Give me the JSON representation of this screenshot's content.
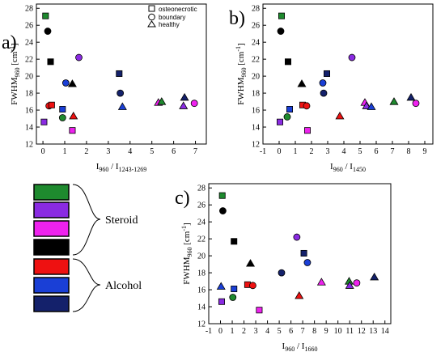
{
  "chart_data": [
    {
      "type": "scatter",
      "panel": "a)",
      "xlabel_main": "I",
      "xlabel_sub1": "960",
      "xlabel_mid": " / I",
      "xlabel_sub2": "1243-1269",
      "ylabel_main": "FWHM",
      "ylabel_sub": "960",
      "ylabel_unit": " [cm",
      "ylabel_sup": "-1",
      "ylabel_end": "]",
      "xlim": [
        -0.3,
        7.5
      ],
      "ylim": [
        12,
        28.5
      ],
      "xticks": [
        0,
        1,
        2,
        3,
        4,
        5,
        6,
        7
      ],
      "xtick_labels": [
        "0",
        "1",
        "2",
        "3",
        "4",
        "5",
        "6",
        "7"
      ],
      "yticks": [
        12,
        14,
        16,
        18,
        20,
        22,
        24,
        26,
        28
      ],
      "ytick_labels": [
        "12",
        "14",
        "16",
        "18",
        "20",
        "22",
        "24",
        "26",
        "28"
      ],
      "points": [
        {
          "x": 0.12,
          "y": 27.1,
          "shape": "square",
          "color": "#1e8a2e"
        },
        {
          "x": 0.05,
          "y": 14.6,
          "shape": "square",
          "color": "#8a2be2"
        },
        {
          "x": 0.28,
          "y": 16.5,
          "shape": "circle",
          "color": "#ee1111"
        },
        {
          "x": 0.22,
          "y": 25.3,
          "shape": "circle",
          "color": "#000000"
        },
        {
          "x": 0.35,
          "y": 21.7,
          "shape": "square",
          "color": "#000000"
        },
        {
          "x": 0.4,
          "y": 16.6,
          "shape": "square",
          "color": "#ee1111"
        },
        {
          "x": 0.9,
          "y": 16.1,
          "shape": "square",
          "color": "#1a3fd6"
        },
        {
          "x": 0.9,
          "y": 15.1,
          "shape": "circle",
          "color": "#1e8a2e"
        },
        {
          "x": 1.05,
          "y": 19.2,
          "shape": "circle",
          "color": "#1a3fd6"
        },
        {
          "x": 1.35,
          "y": 13.6,
          "shape": "square",
          "color": "#ee22ee"
        },
        {
          "x": 1.35,
          "y": 19.1,
          "shape": "triangle",
          "color": "#000000"
        },
        {
          "x": 1.4,
          "y": 15.3,
          "shape": "triangle",
          "color": "#ee1111"
        },
        {
          "x": 1.65,
          "y": 22.2,
          "shape": "circle",
          "color": "#8a2be2"
        },
        {
          "x": 3.5,
          "y": 20.3,
          "shape": "square",
          "color": "#14216b"
        },
        {
          "x": 3.55,
          "y": 18.0,
          "shape": "circle",
          "color": "#14216b"
        },
        {
          "x": 3.65,
          "y": 16.4,
          "shape": "triangle",
          "color": "#1a3fd6"
        },
        {
          "x": 5.3,
          "y": 16.9,
          "shape": "triangle",
          "color": "#ee22ee"
        },
        {
          "x": 5.45,
          "y": 17.0,
          "shape": "triangle",
          "color": "#1e8a2e"
        },
        {
          "x": 6.45,
          "y": 16.5,
          "shape": "triangle",
          "color": "#8a2be2"
        },
        {
          "x": 6.5,
          "y": 17.5,
          "shape": "triangle",
          "color": "#14216b"
        },
        {
          "x": 6.95,
          "y": 16.8,
          "shape": "circle",
          "color": "#ee22ee"
        }
      ]
    },
    {
      "type": "scatter",
      "panel": "b)",
      "xlabel_main": "I",
      "xlabel_sub1": "960",
      "xlabel_mid": " / I",
      "xlabel_sub2": "1450",
      "ylabel_main": "FWHM",
      "ylabel_sub": "960",
      "ylabel_unit": " [cm",
      "ylabel_sup": "-1",
      "ylabel_end": "]",
      "xlim": [
        -1,
        9.5
      ],
      "ylim": [
        12,
        28.5
      ],
      "xticks": [
        -1,
        0,
        1,
        2,
        3,
        4,
        5,
        6,
        7,
        8,
        9
      ],
      "xtick_labels": [
        "-1",
        "0",
        "1",
        "2",
        "3",
        "4",
        "5",
        "6",
        "7",
        "8",
        "9"
      ],
      "yticks": [
        12,
        14,
        16,
        18,
        20,
        22,
        24,
        26,
        28
      ],
      "ytick_labels": [
        "12",
        "14",
        "16",
        "18",
        "20",
        "22",
        "24",
        "26",
        "28"
      ],
      "points": [
        {
          "x": 0.15,
          "y": 27.1,
          "shape": "square",
          "color": "#1e8a2e"
        },
        {
          "x": 0.1,
          "y": 25.3,
          "shape": "circle",
          "color": "#000000"
        },
        {
          "x": 0.05,
          "y": 14.6,
          "shape": "square",
          "color": "#8a2be2"
        },
        {
          "x": 0.55,
          "y": 21.7,
          "shape": "square",
          "color": "#000000"
        },
        {
          "x": 0.5,
          "y": 15.2,
          "shape": "circle",
          "color": "#1e8a2e"
        },
        {
          "x": 0.65,
          "y": 16.1,
          "shape": "square",
          "color": "#1a3fd6"
        },
        {
          "x": 1.4,
          "y": 19.1,
          "shape": "triangle",
          "color": "#000000"
        },
        {
          "x": 1.45,
          "y": 16.6,
          "shape": "square",
          "color": "#ee1111"
        },
        {
          "x": 1.7,
          "y": 16.5,
          "shape": "circle",
          "color": "#ee1111"
        },
        {
          "x": 1.75,
          "y": 13.6,
          "shape": "square",
          "color": "#ee22ee"
        },
        {
          "x": 2.7,
          "y": 19.2,
          "shape": "circle",
          "color": "#1a3fd6"
        },
        {
          "x": 2.75,
          "y": 18.0,
          "shape": "circle",
          "color": "#14216b"
        },
        {
          "x": 2.95,
          "y": 20.3,
          "shape": "square",
          "color": "#14216b"
        },
        {
          "x": 3.75,
          "y": 15.3,
          "shape": "triangle",
          "color": "#ee1111"
        },
        {
          "x": 4.5,
          "y": 22.2,
          "shape": "circle",
          "color": "#8a2be2"
        },
        {
          "x": 5.3,
          "y": 16.9,
          "shape": "triangle",
          "color": "#ee22ee"
        },
        {
          "x": 5.4,
          "y": 16.5,
          "shape": "triangle",
          "color": "#8a2be2"
        },
        {
          "x": 5.7,
          "y": 16.4,
          "shape": "triangle",
          "color": "#1a3fd6"
        },
        {
          "x": 7.1,
          "y": 17.0,
          "shape": "triangle",
          "color": "#1e8a2e"
        },
        {
          "x": 8.15,
          "y": 17.5,
          "shape": "triangle",
          "color": "#14216b"
        },
        {
          "x": 8.45,
          "y": 16.8,
          "shape": "circle",
          "color": "#ee22ee"
        }
      ]
    },
    {
      "type": "scatter",
      "panel": "c)",
      "xlabel_main": "I",
      "xlabel_sub1": "960",
      "xlabel_mid": " / I",
      "xlabel_sub2": "1660",
      "ylabel_main": "FWHM",
      "ylabel_sub": "960",
      "ylabel_unit": " [cm",
      "ylabel_sup": "-1",
      "ylabel_end": "]",
      "xlim": [
        -1,
        14.5
      ],
      "ylim": [
        12,
        28.5
      ],
      "xticks": [
        -1,
        0,
        1,
        2,
        3,
        4,
        5,
        6,
        7,
        8,
        9,
        10,
        11,
        12,
        13,
        14
      ],
      "xtick_labels": [
        "-1",
        "0",
        "1",
        "2",
        "3",
        "4",
        "5",
        "6",
        "7",
        "8",
        "9",
        "10",
        "11",
        "12",
        "13",
        "14"
      ],
      "yticks": [
        12,
        14,
        16,
        18,
        20,
        22,
        24,
        26,
        28
      ],
      "ytick_labels": [
        "12",
        "14",
        "16",
        "18",
        "20",
        "22",
        "24",
        "26",
        "28"
      ],
      "points": [
        {
          "x": 0.15,
          "y": 27.1,
          "shape": "square",
          "color": "#1e8a2e"
        },
        {
          "x": 0.2,
          "y": 25.3,
          "shape": "circle",
          "color": "#000000"
        },
        {
          "x": 0.05,
          "y": 16.4,
          "shape": "triangle",
          "color": "#1a3fd6"
        },
        {
          "x": 0.1,
          "y": 14.6,
          "shape": "square",
          "color": "#8a2be2"
        },
        {
          "x": 1.15,
          "y": 21.7,
          "shape": "square",
          "color": "#000000"
        },
        {
          "x": 1.15,
          "y": 16.1,
          "shape": "square",
          "color": "#1a3fd6"
        },
        {
          "x": 1.05,
          "y": 15.1,
          "shape": "circle",
          "color": "#1e8a2e"
        },
        {
          "x": 2.3,
          "y": 16.6,
          "shape": "square",
          "color": "#ee1111"
        },
        {
          "x": 2.55,
          "y": 19.1,
          "shape": "triangle",
          "color": "#000000"
        },
        {
          "x": 2.75,
          "y": 16.5,
          "shape": "circle",
          "color": "#ee1111"
        },
        {
          "x": 3.3,
          "y": 13.6,
          "shape": "square",
          "color": "#ee22ee"
        },
        {
          "x": 5.2,
          "y": 18.0,
          "shape": "circle",
          "color": "#14216b"
        },
        {
          "x": 6.5,
          "y": 22.2,
          "shape": "circle",
          "color": "#8a2be2"
        },
        {
          "x": 6.7,
          "y": 15.3,
          "shape": "triangle",
          "color": "#ee1111"
        },
        {
          "x": 7.1,
          "y": 20.3,
          "shape": "square",
          "color": "#14216b"
        },
        {
          "x": 7.4,
          "y": 19.2,
          "shape": "circle",
          "color": "#1a3fd6"
        },
        {
          "x": 8.6,
          "y": 16.9,
          "shape": "triangle",
          "color": "#ee22ee"
        },
        {
          "x": 10.95,
          "y": 17.0,
          "shape": "triangle",
          "color": "#1e8a2e"
        },
        {
          "x": 11.0,
          "y": 16.5,
          "shape": "triangle",
          "color": "#8a2be2"
        },
        {
          "x": 11.6,
          "y": 16.8,
          "shape": "circle",
          "color": "#ee22ee"
        },
        {
          "x": 13.1,
          "y": 17.5,
          "shape": "triangle",
          "color": "#14216b"
        }
      ]
    }
  ],
  "shape_legend": [
    {
      "shape": "square",
      "label": "osteonecrotic"
    },
    {
      "shape": "circle",
      "label": "boundary"
    },
    {
      "shape": "triangle",
      "label": "healthy"
    }
  ],
  "color_legend": {
    "groups": [
      {
        "label": "Steroid",
        "colors": [
          "#1e8a2e",
          "#8a2be2",
          "#ee22ee",
          "#000000"
        ]
      },
      {
        "label": "Alcohol",
        "colors": [
          "#ee1111",
          "#1a3fd6",
          "#14216b"
        ]
      }
    ]
  }
}
